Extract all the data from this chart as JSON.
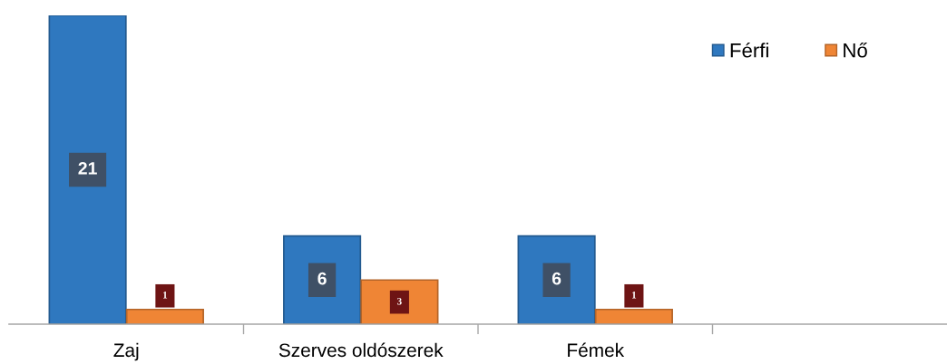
{
  "chart_data": {
    "type": "bar",
    "categories": [
      "Zaj",
      "Szerves oldószerek",
      "Fémek",
      null
    ],
    "series": [
      {
        "name": "Férfi",
        "color": "#2f78bf",
        "values": [
          21,
          6,
          6,
          null
        ]
      },
      {
        "name": "Nő",
        "color": "#ef8535",
        "values": [
          1,
          3,
          1,
          null
        ]
      }
    ],
    "data_labels": true,
    "legend": "top right"
  }
}
